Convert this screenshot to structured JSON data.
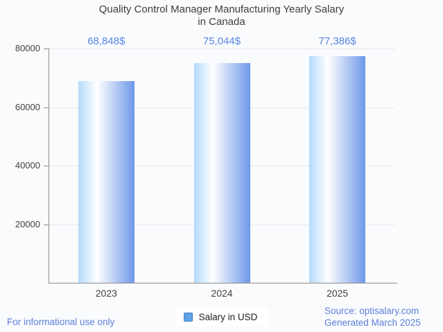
{
  "title": {
    "line1": "Quality Control Manager Manufacturing Yearly Salary",
    "line2": "in Canada"
  },
  "legend": {
    "label": "Salary in USD",
    "symbol_color": "#61a1e8",
    "symbol_border": "#3e7fc4"
  },
  "footer": {
    "disclaimer": "For informational use only",
    "source_line1": "Source: optisalary.com",
    "source_line2": "Generated March 2025",
    "text_color": "#5b7ed9"
  },
  "chart_data": {
    "type": "bar",
    "title": "Quality Control Manager Manufacturing Yearly Salary in Canada",
    "categories": [
      "2023",
      "2024",
      "2025"
    ],
    "series": [
      {
        "name": "Salary in USD",
        "values": [
          68848,
          75044,
          77386
        ]
      }
    ],
    "value_labels": [
      "68,848$",
      "75,044$",
      "77,386$"
    ],
    "xlabel": "",
    "ylabel": "",
    "ylim": [
      0,
      80000
    ],
    "yticks": [
      20000,
      40000,
      60000,
      80000
    ],
    "ytick_labels": [
      "20000",
      "40000",
      "60000",
      "80000"
    ],
    "grid": true,
    "legend_position": "bottom",
    "colors": {
      "bar_gradient": [
        "#b3dbfc",
        "#ffffff",
        "#6e98e9"
      ],
      "value_label": "#5685e4",
      "grid": "#e6e8eb",
      "axis": "#8d8d8d",
      "axis_text": "#404040",
      "title_text": "#3d3d3d",
      "background": "#fafbfd"
    }
  }
}
